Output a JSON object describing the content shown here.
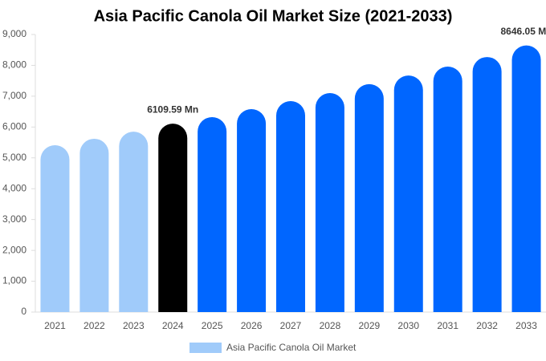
{
  "chart_data": {
    "type": "bar",
    "title": "Asia Pacific Canola Oil Market Size (2021-2033)",
    "categories": [
      "2021",
      "2022",
      "2023",
      "2024",
      "2025",
      "2026",
      "2027",
      "2028",
      "2029",
      "2030",
      "2031",
      "2032",
      "2033"
    ],
    "series": [
      {
        "name": "Asia Pacific Canola Oil Market",
        "color": "#a0cbfa",
        "values": [
          5410,
          5620,
          5850,
          6109.59,
          6320,
          6580,
          6840,
          7100,
          7390,
          7670,
          7960,
          8270,
          8646.05
        ],
        "value_labels": [
          null,
          null,
          null,
          "6109.59 Mn",
          null,
          null,
          null,
          null,
          null,
          null,
          null,
          null,
          "8646.05 Mn"
        ],
        "colors": [
          "#a0cbfa",
          "#a0cbfa",
          "#a0cbfa",
          "#000000",
          "#0066ff",
          "#0066ff",
          "#0066ff",
          "#0066ff",
          "#0066ff",
          "#0066ff",
          "#0066ff",
          "#0066ff",
          "#0066ff"
        ]
      }
    ],
    "ylim": [
      0,
      9000
    ],
    "yticks": [
      0,
      {
        "value": 1000,
        "label": "1,000"
      },
      {
        "value": 2000,
        "label": "2,000"
      },
      {
        "value": 3000,
        "label": "3,000"
      },
      {
        "value": 4000,
        "label": "4,000"
      },
      {
        "value": 5000,
        "label": "5,000"
      },
      {
        "value": 6000,
        "label": "6,000"
      },
      {
        "value": 7000,
        "label": "7,000"
      },
      {
        "value": 8000,
        "label": "8,000"
      },
      {
        "value": 9000,
        "label": "9,000"
      }
    ]
  }
}
